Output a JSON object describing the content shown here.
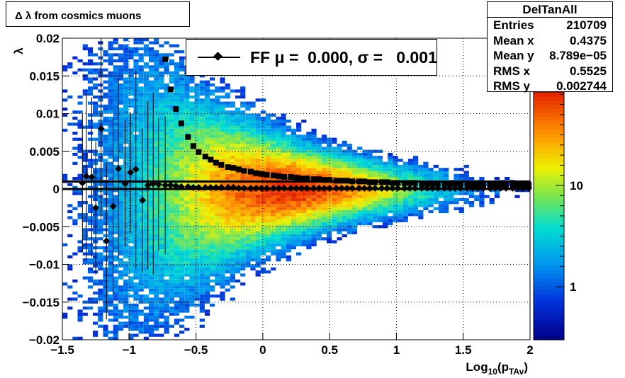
{
  "title": "Δ λ from cosmics muons",
  "stats": {
    "name": "DelTanAll",
    "rows": [
      {
        "label": "Entries",
        "value": "210709"
      },
      {
        "label": "Mean x",
        "value": "0.4375"
      },
      {
        "label": "Mean y",
        "value": "8.789e−05"
      },
      {
        "label": "RMS x",
        "value": "0.5525"
      },
      {
        "label": "RMS y",
        "value": "0.002744"
      }
    ]
  },
  "legend": {
    "text": "FF μ =  0.000, σ =   0.001"
  },
  "chart_data": {
    "type": "heatmap",
    "xlabel": "Log10(pTAv)",
    "ylabel": "λ",
    "xlim": [
      -1.5,
      2
    ],
    "ylim": [
      -0.02,
      0.02
    ],
    "zscale": "log",
    "grid": true,
    "xticks": [
      "−1.5",
      "−1",
      "−0.5",
      "0",
      "0.5",
      "1",
      "1.5",
      "2"
    ],
    "yticks": [
      "−0.02",
      "−0.015",
      "−0.01",
      "−0.005",
      "0",
      "0.005",
      "0.01",
      "0.015",
      "0.02"
    ],
    "zticks": [
      "1",
      "10"
    ],
    "mean_points": {
      "x": [
        -1.35,
        -1.32,
        -1.28,
        -1.25,
        -1.21,
        -1.17,
        -1.12,
        -1.08,
        -1.03,
        -0.99,
        -0.95,
        -0.9,
        -0.86,
        -0.82,
        -0.78,
        -0.73,
        -0.69,
        -0.65,
        -0.61,
        -0.56,
        -0.52,
        -0.48,
        -0.43,
        -0.39,
        -0.35,
        -0.31,
        -0.26,
        -0.22,
        -0.18,
        -0.14,
        -0.09,
        -0.05,
        -0.01,
        0.03,
        0.08,
        0.12,
        0.16,
        0.21,
        0.25,
        0.29,
        0.33,
        0.38,
        0.42,
        0.46,
        0.5,
        0.55,
        0.59,
        0.63,
        0.67,
        0.72,
        0.76,
        0.8,
        0.84,
        0.89,
        0.93,
        0.97,
        1.01,
        1.06,
        1.1,
        1.14,
        1.19,
        1.23,
        1.27,
        1.31,
        1.36,
        1.4,
        1.44,
        1.48,
        1.53,
        1.57,
        1.61,
        1.65,
        1.7,
        1.74,
        1.78,
        1.82,
        1.87,
        1.91,
        1.95,
        1.99
      ],
      "y": [
        0.0008,
        0.0017,
        0.0016,
        -0.0025,
        0.008,
        -0.0069,
        -0.0023,
        0.0027,
        0.0007,
        0.0022,
        0.0026,
        -0.0015,
        0.0005,
        0.0007,
        0.0006,
        0.0005,
        0.0005,
        0.0004,
        0.0003,
        0.0003,
        0.0002,
        0.0002,
        0.0002,
        0.0002,
        0.0002,
        0.0002,
        0.0002,
        0.0002,
        0.0001,
        0.0001,
        0.0001,
        0.0001,
        0.0001,
        0.0001,
        0.0001,
        0.0001,
        0.0001,
        0.0001,
        0.0001,
        0.0001,
        0.0001,
        0.0001,
        0.0001,
        0.0001,
        0.0001,
        0.0001,
        0.0001,
        0.0001,
        0.0001,
        0.0001,
        0.0001,
        0.0001,
        0.0001,
        0.0001,
        0.0001,
        0.0001,
        0.0001,
        0.0001,
        0.0001,
        0.0001,
        0.0001,
        0.0001,
        0.0001,
        0.0001,
        0.0001,
        0.0001,
        0.0001,
        0.0001,
        0.0001,
        0.0001,
        0.0001,
        0.0001,
        0.0001,
        0.0001,
        0.0001,
        0.0001,
        0.0001,
        0.0001,
        0.0001,
        0.0001
      ]
    },
    "rms_points": {
      "x": [
        -0.73,
        -0.69,
        -0.65,
        -0.61,
        -0.56,
        -0.52,
        -0.48,
        -0.43,
        -0.39,
        -0.35,
        -0.31,
        -0.26,
        -0.22,
        -0.18,
        -0.14,
        -0.09,
        -0.05,
        -0.01,
        0.03,
        0.08,
        0.12,
        0.16,
        0.21,
        0.25,
        0.29,
        0.33,
        0.38,
        0.42,
        0.46,
        0.5,
        0.55,
        0.59,
        0.63,
        0.67,
        0.72,
        0.76,
        0.8,
        0.84,
        0.89,
        0.93,
        0.97,
        1.01,
        1.06,
        1.1,
        1.14,
        1.19,
        1.23,
        1.27,
        1.31,
        1.36,
        1.4,
        1.44,
        1.48,
        1.53,
        1.57,
        1.61,
        1.65,
        1.7,
        1.74,
        1.78,
        1.82,
        1.87,
        1.91,
        1.95,
        1.99
      ],
      "y": [
        0.0172,
        0.0132,
        0.0106,
        0.0087,
        0.0069,
        0.0057,
        0.0049,
        0.0043,
        0.0039,
        0.0035,
        0.0032,
        0.0029,
        0.0028,
        0.0026,
        0.0024,
        0.0023,
        0.0021,
        0.002,
        0.0019,
        0.0018,
        0.0017,
        0.0016,
        0.0016,
        0.0015,
        0.0014,
        0.0014,
        0.0013,
        0.0013,
        0.0012,
        0.0012,
        0.0011,
        0.0011,
        0.0011,
        0.001,
        0.001,
        0.001,
        0.0009,
        0.0009,
        0.0009,
        0.0009,
        0.0008,
        0.0008,
        0.0008,
        0.0008,
        0.0008,
        0.0007,
        0.0007,
        0.0007,
        0.0007,
        0.0007,
        0.0007,
        0.0007,
        0.0007,
        0.0006,
        0.0006,
        0.0006,
        0.0006,
        0.0006,
        0.0006,
        0.0006,
        0.0006,
        0.0006,
        0.0006,
        0.0006,
        0.0006
      ]
    },
    "fit_lines": [
      0.001,
      0.0
    ]
  }
}
